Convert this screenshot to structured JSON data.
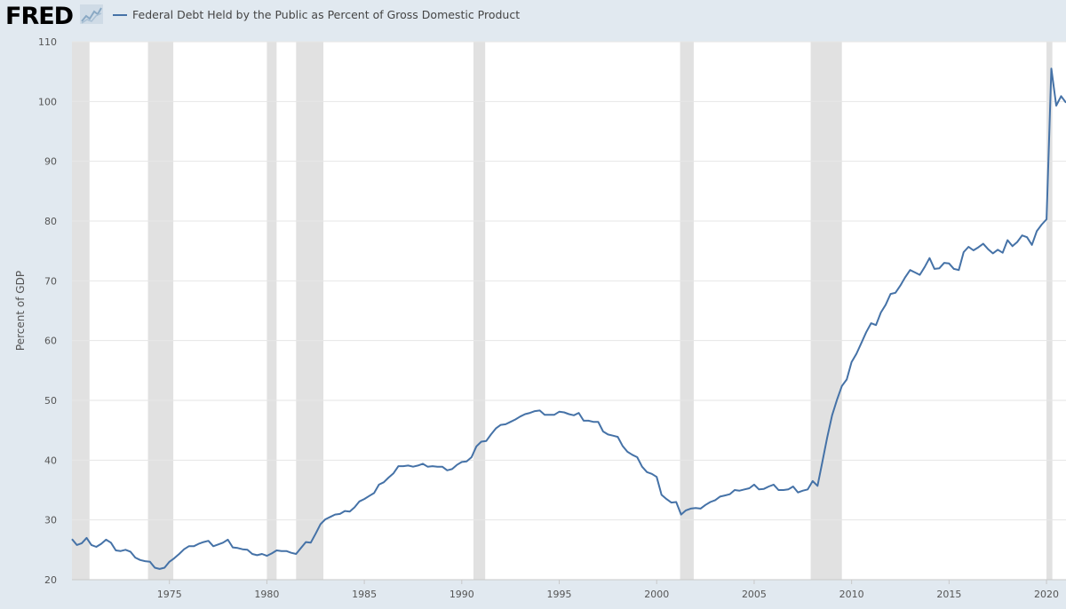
{
  "header": {
    "logo_text": "FRED",
    "logo_icon": "chart-line-icon",
    "legend_label": "Federal Debt Held by the Public as Percent of Gross Domestic Product",
    "series_color": "#4572a7"
  },
  "chart_data": {
    "type": "line",
    "title": "Federal Debt Held by the Public as Percent of Gross Domestic Product",
    "xlabel": "",
    "ylabel": "Percent of GDP",
    "xlim": [
      1970.0,
      2021.0
    ],
    "ylim": [
      20,
      110
    ],
    "yticks": [
      20,
      30,
      40,
      50,
      60,
      70,
      80,
      90,
      100,
      110
    ],
    "xticks": [
      1975,
      1980,
      1985,
      1990,
      1995,
      2000,
      2005,
      2010,
      2015,
      2020
    ],
    "grid": true,
    "recessions": [
      [
        1970.0,
        1970.9
      ],
      [
        1973.9,
        1975.2
      ],
      [
        1980.0,
        1980.5
      ],
      [
        1981.5,
        1982.9
      ],
      [
        1990.6,
        1991.2
      ],
      [
        2001.2,
        2001.9
      ],
      [
        2007.9,
        2009.5
      ],
      [
        2020.0,
        2020.3
      ]
    ],
    "series": [
      {
        "name": "Federal Debt Held by the Public as Percent of Gross Domestic Product",
        "color": "#4572a7",
        "x": [
          1970.0,
          1970.25,
          1970.5,
          1970.75,
          1971.0,
          1971.25,
          1971.5,
          1971.75,
          1972.0,
          1972.25,
          1972.5,
          1972.75,
          1973.0,
          1973.25,
          1973.5,
          1973.75,
          1974.0,
          1974.25,
          1974.5,
          1974.75,
          1975.0,
          1975.25,
          1975.5,
          1975.75,
          1976.0,
          1976.25,
          1976.5,
          1976.75,
          1977.0,
          1977.25,
          1977.5,
          1977.75,
          1978.0,
          1978.25,
          1978.5,
          1978.75,
          1979.0,
          1979.25,
          1979.5,
          1979.75,
          1980.0,
          1980.25,
          1980.5,
          1980.75,
          1981.0,
          1981.25,
          1981.5,
          1981.75,
          1982.0,
          1982.25,
          1982.5,
          1982.75,
          1983.0,
          1983.25,
          1983.5,
          1983.75,
          1984.0,
          1984.25,
          1984.5,
          1984.75,
          1985.0,
          1985.25,
          1985.5,
          1985.75,
          1986.0,
          1986.25,
          1986.5,
          1986.75,
          1987.0,
          1987.25,
          1987.5,
          1987.75,
          1988.0,
          1988.25,
          1988.5,
          1988.75,
          1989.0,
          1989.25,
          1989.5,
          1989.75,
          1990.0,
          1990.25,
          1990.5,
          1990.75,
          1991.0,
          1991.25,
          1991.5,
          1991.75,
          1992.0,
          1992.25,
          1992.5,
          1992.75,
          1993.0,
          1993.25,
          1993.5,
          1993.75,
          1994.0,
          1994.25,
          1994.5,
          1994.75,
          1995.0,
          1995.25,
          1995.5,
          1995.75,
          1996.0,
          1996.25,
          1996.5,
          1996.75,
          1997.0,
          1997.25,
          1997.5,
          1997.75,
          1998.0,
          1998.25,
          1998.5,
          1998.75,
          1999.0,
          1999.25,
          1999.5,
          1999.75,
          2000.0,
          2000.25,
          2000.5,
          2000.75,
          2001.0,
          2001.25,
          2001.5,
          2001.75,
          2002.0,
          2002.25,
          2002.5,
          2002.75,
          2003.0,
          2003.25,
          2003.5,
          2003.75,
          2004.0,
          2004.25,
          2004.5,
          2004.75,
          2005.0,
          2005.25,
          2005.5,
          2005.75,
          2006.0,
          2006.25,
          2006.5,
          2006.75,
          2007.0,
          2007.25,
          2007.5,
          2007.75,
          2008.0,
          2008.25,
          2008.5,
          2008.75,
          2009.0,
          2009.25,
          2009.5,
          2009.75,
          2010.0,
          2010.25,
          2010.5,
          2010.75,
          2011.0,
          2011.25,
          2011.5,
          2011.75,
          2012.0,
          2012.25,
          2012.5,
          2012.75,
          2013.0,
          2013.25,
          2013.5,
          2013.75,
          2014.0,
          2014.25,
          2014.5,
          2014.75,
          2015.0,
          2015.25,
          2015.5,
          2015.75,
          2016.0,
          2016.25,
          2016.5,
          2016.75,
          2017.0,
          2017.25,
          2017.5,
          2017.75,
          2018.0,
          2018.25,
          2018.5,
          2018.75,
          2019.0,
          2019.25,
          2019.5,
          2019.75,
          2020.0,
          2020.25,
          2020.5,
          2020.75,
          2021.0
        ],
        "values": [
          26.8,
          25.8,
          26.1,
          27.0,
          25.8,
          25.5,
          26.0,
          26.7,
          26.2,
          24.9,
          24.8,
          25.0,
          24.7,
          23.7,
          23.3,
          23.1,
          23.0,
          22.0,
          21.8,
          22.0,
          23.0,
          23.6,
          24.3,
          25.1,
          25.6,
          25.6,
          26.0,
          26.3,
          26.5,
          25.6,
          25.9,
          26.2,
          26.7,
          25.4,
          25.3,
          25.1,
          25.0,
          24.3,
          24.1,
          24.3,
          24.0,
          24.4,
          24.9,
          24.8,
          24.8,
          24.5,
          24.3,
          25.3,
          26.3,
          26.2,
          27.7,
          29.3,
          30.1,
          30.5,
          30.9,
          31.0,
          31.5,
          31.4,
          32.1,
          33.1,
          33.5,
          34.0,
          34.5,
          35.9,
          36.3,
          37.1,
          37.8,
          39.0,
          39.0,
          39.1,
          38.9,
          39.1,
          39.4,
          38.9,
          39.0,
          38.9,
          38.9,
          38.3,
          38.5,
          39.2,
          39.7,
          39.8,
          40.5,
          42.3,
          43.1,
          43.2,
          44.3,
          45.3,
          45.9,
          46.0,
          46.4,
          46.8,
          47.3,
          47.7,
          47.9,
          48.2,
          48.3,
          47.6,
          47.6,
          47.6,
          48.1,
          48.0,
          47.7,
          47.5,
          47.9,
          46.6,
          46.6,
          46.4,
          46.4,
          44.8,
          44.3,
          44.1,
          43.9,
          42.4,
          41.4,
          40.9,
          40.5,
          38.9,
          38.0,
          37.7,
          37.2,
          34.2,
          33.5,
          32.9,
          33.0,
          30.9,
          31.6,
          31.9,
          32.0,
          31.9,
          32.5,
          33.0,
          33.3,
          33.9,
          34.1,
          34.3,
          35.0,
          34.9,
          35.1,
          35.3,
          35.9,
          35.1,
          35.2,
          35.6,
          35.9,
          35.0,
          35.0,
          35.1,
          35.6,
          34.6,
          34.9,
          35.1,
          36.5,
          35.7,
          39.7,
          43.8,
          47.5,
          50.1,
          52.4,
          53.5,
          56.4,
          57.8,
          59.6,
          61.4,
          62.9,
          62.6,
          64.7,
          66.0,
          67.8,
          68.0,
          69.2,
          70.6,
          71.8,
          71.4,
          71.0,
          72.3,
          73.8,
          72.0,
          72.1,
          73.0,
          72.9,
          72.0,
          71.8,
          74.8,
          75.7,
          75.1,
          75.6,
          76.2,
          75.3,
          74.6,
          75.2,
          74.7,
          76.8,
          75.8,
          76.5,
          77.6,
          77.3,
          76.0,
          78.3,
          79.4,
          80.3,
          105.5,
          99.3,
          100.9,
          99.8
        ]
      }
    ]
  }
}
